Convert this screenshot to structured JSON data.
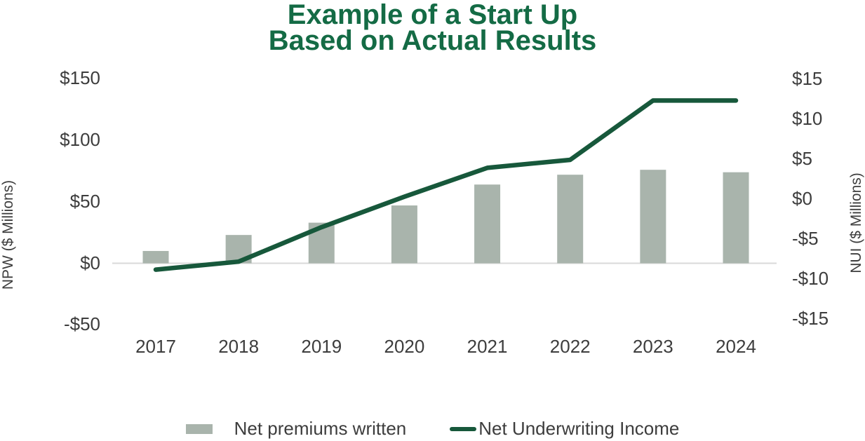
{
  "title": {
    "line1": "Example of a Start Up",
    "line2": "Based on Actual Results"
  },
  "colors": {
    "title_green": "#146b45",
    "line_green": "#17583b",
    "bar_sage": "#a9b4ac",
    "gridline": "#d9d9d9",
    "text": "#3d3d3d"
  },
  "chart_data": {
    "type": "combo-bar-line",
    "categories": [
      "2017",
      "2018",
      "2019",
      "2020",
      "2021",
      "2022",
      "2023",
      "2024"
    ],
    "series": [
      {
        "name": "Net premiums written",
        "type": "bar",
        "axis": "left",
        "values": [
          10,
          23,
          33,
          47,
          64,
          72,
          76,
          74
        ]
      },
      {
        "name": "Net Underwriting Income",
        "type": "line",
        "axis": "right",
        "values": [
          -8.8,
          -7.8,
          -3.5,
          0.3,
          3.9,
          4.9,
          12.3,
          12.3
        ]
      }
    ],
    "left_axis": {
      "label": "NPW ($ Millions)",
      "ticks": [
        "$150",
        "$100",
        "$50",
        "$0",
        "-$50"
      ],
      "tick_values": [
        150,
        100,
        50,
        0,
        -50
      ],
      "range": [
        -50,
        150
      ]
    },
    "right_axis": {
      "label": "NUI ($ Millions)",
      "ticks": [
        "$15",
        "$10",
        "$5",
        "$0",
        "-$5",
        "-$10",
        "-$15"
      ],
      "tick_values": [
        15,
        10,
        5,
        0,
        -5,
        -10,
        -15
      ],
      "range": [
        -15,
        15
      ]
    },
    "legend_position": "bottom",
    "grid": "zero-line-only"
  }
}
